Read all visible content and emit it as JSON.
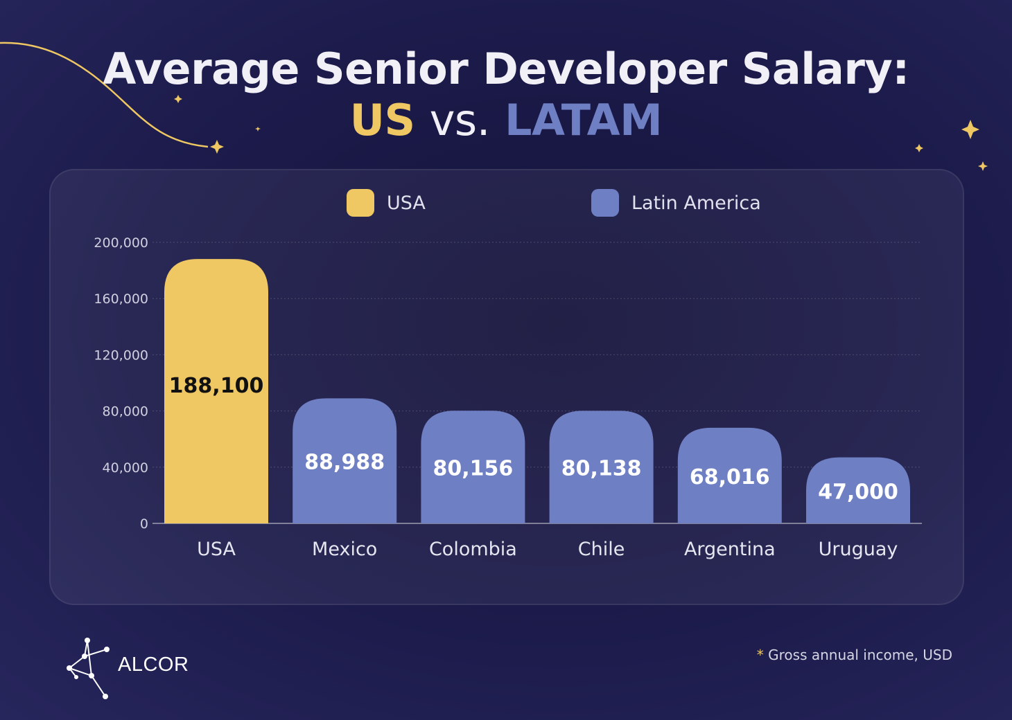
{
  "header": {
    "title_line1": "Average Senior Developer Salary:",
    "title_us": "US",
    "title_vs": "vs.",
    "title_latam": "LATAM"
  },
  "colors": {
    "usa": "#efc863",
    "latam": "#6f7fc4",
    "background": "#1c1b4b"
  },
  "chart_data": {
    "type": "bar",
    "title": "",
    "xlabel": "",
    "ylabel": "",
    "categories": [
      "USA",
      "Mexico",
      "Colombia",
      "Chile",
      "Argentina",
      "Uruguay"
    ],
    "values": [
      188100,
      88988,
      80156,
      80138,
      68016,
      47000
    ],
    "value_labels": [
      "188,100",
      "88,988",
      "80,156",
      "80,138",
      "68,016",
      "47,000"
    ],
    "groups": [
      "USA",
      "Latin America",
      "Latin America",
      "Latin America",
      "Latin America",
      "Latin America"
    ],
    "ylim": [
      0,
      200000
    ],
    "yticks": [
      0,
      40000,
      80000,
      120000,
      160000,
      200000
    ],
    "ytick_labels": [
      "0",
      "40,000",
      "80,000",
      "120,000",
      "160,000",
      "200,000"
    ],
    "legend": [
      {
        "name": "USA",
        "color": "#efc863"
      },
      {
        "name": "Latin America",
        "color": "#6f7fc4"
      }
    ],
    "legend_position": "top-center",
    "grid": true
  },
  "footnote": {
    "marker": "*",
    "text": "Gross annual income, USD"
  },
  "brand": {
    "name": "ALCOR",
    "logo_icon": "constellation-logo-icon"
  }
}
